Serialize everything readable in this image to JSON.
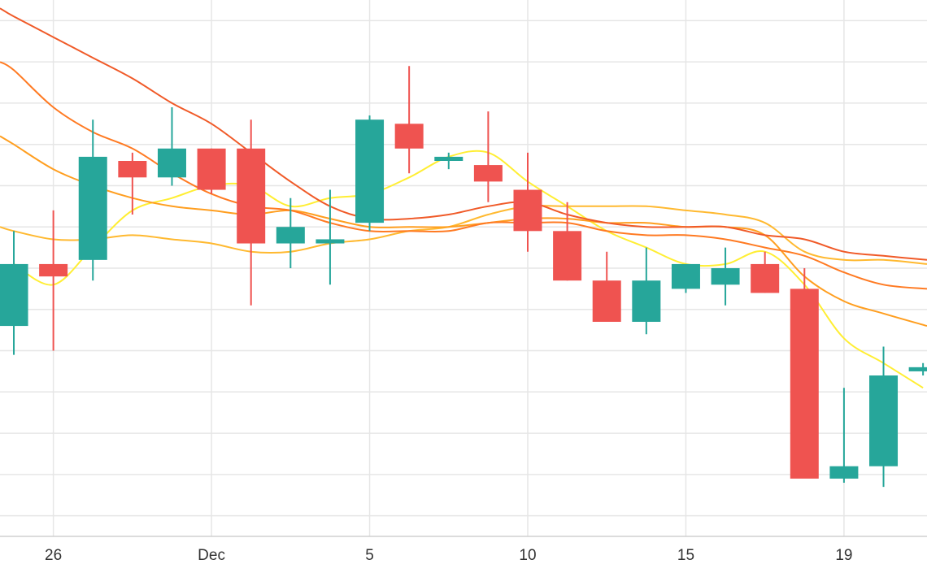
{
  "chart_data": {
    "type": "candlestick",
    "title": "",
    "xlabel": "",
    "ylabel": "",
    "x_ticks": [
      {
        "x": 1,
        "label": "26"
      },
      {
        "x": 5,
        "label": "Dec"
      },
      {
        "x": 9,
        "label": "5"
      },
      {
        "x": 13,
        "label": "10"
      },
      {
        "x": 17,
        "label": "15"
      },
      {
        "x": 21,
        "label": "19"
      }
    ],
    "xlim": [
      -0.35,
      23.1
    ],
    "ylim": [
      -12.5,
      0.5
    ],
    "grid": true,
    "colors": {
      "up": "#26a69a",
      "down": "#ef5350",
      "grid": "#e6e6e6"
    },
    "candles": [
      {
        "x": 0,
        "open": -7.4,
        "high": -5.1,
        "low": -8.1,
        "close": -5.9
      },
      {
        "x": 1,
        "open": -5.9,
        "high": -4.6,
        "low": -8.0,
        "close": -6.2
      },
      {
        "x": 2,
        "open": -5.8,
        "high": -2.4,
        "low": -6.3,
        "close": -3.3
      },
      {
        "x": 3,
        "open": -3.4,
        "high": -3.2,
        "low": -4.7,
        "close": -3.8
      },
      {
        "x": 4,
        "open": -3.8,
        "high": -2.1,
        "low": -4.0,
        "close": -3.1
      },
      {
        "x": 5,
        "open": -3.1,
        "high": -3.1,
        "low": -4.2,
        "close": -4.1
      },
      {
        "x": 6,
        "open": -3.1,
        "high": -2.4,
        "low": -6.9,
        "close": -5.4
      },
      {
        "x": 7,
        "open": -5.4,
        "high": -4.3,
        "low": -6.0,
        "close": -5.0
      },
      {
        "x": 8,
        "open": -5.4,
        "high": -4.1,
        "low": -6.4,
        "close": -5.3
      },
      {
        "x": 9,
        "open": -4.9,
        "high": -2.3,
        "low": -5.1,
        "close": -2.4
      },
      {
        "x": 10,
        "open": -2.5,
        "high": -1.1,
        "low": -3.7,
        "close": -3.1
      },
      {
        "x": 11,
        "open": -3.4,
        "high": -3.2,
        "low": -3.6,
        "close": -3.3
      },
      {
        "x": 12,
        "open": -3.5,
        "high": -2.2,
        "low": -4.4,
        "close": -3.9
      },
      {
        "x": 13,
        "open": -4.1,
        "high": -3.2,
        "low": -5.6,
        "close": -5.1
      },
      {
        "x": 14,
        "open": -5.1,
        "high": -4.4,
        "low": -6.3,
        "close": -6.3
      },
      {
        "x": 15,
        "open": -6.3,
        "high": -5.6,
        "low": -7.3,
        "close": -7.3
      },
      {
        "x": 16,
        "open": -7.3,
        "high": -5.5,
        "low": -7.6,
        "close": -6.3
      },
      {
        "x": 17,
        "open": -6.5,
        "high": -5.9,
        "low": -6.6,
        "close": -5.9
      },
      {
        "x": 18,
        "open": -6.4,
        "high": -5.5,
        "low": -6.9,
        "close": -6.0
      },
      {
        "x": 19,
        "open": -5.9,
        "high": -5.6,
        "low": -6.6,
        "close": -6.6
      },
      {
        "x": 20,
        "open": -6.5,
        "high": -6.0,
        "low": -11.0,
        "close": -11.1
      },
      {
        "x": 21,
        "open": -11.1,
        "high": -8.9,
        "low": -11.2,
        "close": -10.8
      },
      {
        "x": 22,
        "open": -10.8,
        "high": -7.9,
        "low": -11.3,
        "close": -8.6
      },
      {
        "x": 23,
        "open": -8.5,
        "high": -8.3,
        "low": -8.6,
        "close": -8.4
      }
    ],
    "series": [
      {
        "color": "#ffee33",
        "x": [
          0,
          1,
          2,
          3,
          4,
          5,
          6,
          7,
          8,
          9,
          10,
          11,
          12,
          13,
          14,
          15,
          16,
          17,
          18,
          19,
          20,
          21,
          22,
          23
        ],
        "values": [
          -5.9,
          -6.4,
          -5.5,
          -4.6,
          -4.3,
          -4.0,
          -4.0,
          -4.5,
          -4.3,
          -4.2,
          -3.8,
          -3.3,
          -3.2,
          -3.9,
          -4.5,
          -5.1,
          -5.5,
          -5.9,
          -5.9,
          -5.6,
          -6.4,
          -7.7,
          -8.3,
          -8.9
        ]
      },
      {
        "color": "#ffb930",
        "x": [
          -0.35,
          0,
          1,
          2,
          3,
          4,
          5,
          6,
          7,
          8,
          9,
          10,
          11,
          12,
          13,
          14,
          15,
          16,
          17,
          18,
          19,
          20,
          21,
          22,
          23.1
        ],
        "values": [
          -5.0,
          -5.1,
          -5.3,
          -5.3,
          -5.2,
          -5.3,
          -5.4,
          -5.6,
          -5.6,
          -5.4,
          -5.3,
          -5.1,
          -5.0,
          -4.7,
          -4.5,
          -4.5,
          -4.5,
          -4.5,
          -4.6,
          -4.7,
          -4.9,
          -5.6,
          -5.8,
          -5.8,
          -5.9
        ]
      },
      {
        "color": "#ff9e1f",
        "x": [
          -0.35,
          0,
          1,
          2,
          3,
          4,
          5,
          6,
          7,
          8,
          9,
          10,
          11,
          12,
          13,
          14,
          15,
          16,
          17,
          18,
          19,
          20,
          21,
          22,
          23.1
        ],
        "values": [
          -2.8,
          -3.0,
          -3.6,
          -4.0,
          -4.3,
          -4.5,
          -4.6,
          -4.7,
          -4.6,
          -4.8,
          -5.0,
          -5.0,
          -5.0,
          -4.9,
          -4.8,
          -4.8,
          -4.9,
          -4.9,
          -5.0,
          -5.0,
          -5.2,
          -6.2,
          -6.8,
          -7.1,
          -7.4
        ]
      },
      {
        "color": "#ff7a22",
        "x": [
          -0.35,
          0,
          1,
          2,
          3,
          4,
          5,
          6,
          7,
          8,
          9,
          10,
          11,
          12,
          13,
          14,
          15,
          16,
          17,
          18,
          19,
          20,
          21,
          22,
          23.1
        ],
        "values": [
          -1.0,
          -1.2,
          -2.1,
          -2.7,
          -3.1,
          -3.7,
          -4.2,
          -4.5,
          -4.6,
          -4.9,
          -5.1,
          -5.1,
          -5.1,
          -4.9,
          -4.9,
          -4.9,
          -5.1,
          -5.2,
          -5.2,
          -5.3,
          -5.5,
          -5.7,
          -6.1,
          -6.4,
          -6.5
        ]
      },
      {
        "color": "#f05a28",
        "x": [
          -0.35,
          0,
          1,
          2,
          3,
          4,
          5,
          6,
          7,
          8,
          9,
          10,
          11,
          12,
          13,
          14,
          15,
          16,
          17,
          18,
          19,
          20,
          21,
          22,
          23.1
        ],
        "values": [
          0.3,
          0.1,
          -0.4,
          -0.9,
          -1.4,
          -2.0,
          -2.5,
          -3.2,
          -3.9,
          -4.5,
          -4.8,
          -4.8,
          -4.7,
          -4.5,
          -4.4,
          -4.7,
          -4.9,
          -5.0,
          -5.0,
          -5.0,
          -5.2,
          -5.3,
          -5.6,
          -5.7,
          -5.8
        ]
      }
    ]
  }
}
